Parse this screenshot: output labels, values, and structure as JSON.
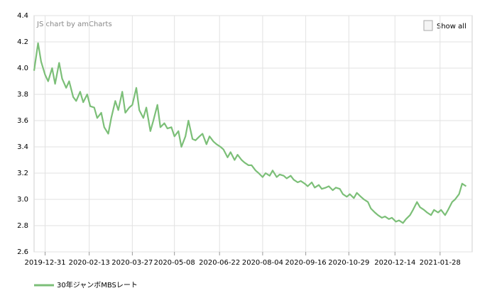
{
  "chart_data": {
    "type": "line",
    "credit": "JS chart by amCharts",
    "button": "Show all",
    "x": [
      "2019-12-20",
      "2019-12-24",
      "2019-12-27",
      "2019-12-31",
      "2020-01-03",
      "2020-01-07",
      "2020-01-10",
      "2020-01-14",
      "2020-01-17",
      "2020-01-21",
      "2020-01-24",
      "2020-01-28",
      "2020-01-31",
      "2020-02-04",
      "2020-02-07",
      "2020-02-11",
      "2020-02-14",
      "2020-02-18",
      "2020-02-21",
      "2020-02-25",
      "2020-02-28",
      "2020-03-03",
      "2020-03-06",
      "2020-03-10",
      "2020-03-13",
      "2020-03-17",
      "2020-03-20",
      "2020-03-24",
      "2020-03-27",
      "2020-03-31",
      "2020-04-03",
      "2020-04-07",
      "2020-04-10",
      "2020-04-14",
      "2020-04-17",
      "2020-04-21",
      "2020-04-24",
      "2020-04-28",
      "2020-05-01",
      "2020-05-05",
      "2020-05-08",
      "2020-05-12",
      "2020-05-15",
      "2020-05-19",
      "2020-05-22",
      "2020-05-26",
      "2020-05-29",
      "2020-06-02",
      "2020-06-05",
      "2020-06-09",
      "2020-06-12",
      "2020-06-16",
      "2020-06-19",
      "2020-06-23",
      "2020-06-26",
      "2020-06-30",
      "2020-07-03",
      "2020-07-07",
      "2020-07-10",
      "2020-07-14",
      "2020-07-17",
      "2020-07-21",
      "2020-07-24",
      "2020-07-28",
      "2020-07-31",
      "2020-08-04",
      "2020-08-07",
      "2020-08-11",
      "2020-08-14",
      "2020-08-18",
      "2020-08-21",
      "2020-08-25",
      "2020-08-28",
      "2020-09-01",
      "2020-09-04",
      "2020-09-08",
      "2020-09-11",
      "2020-09-15",
      "2020-09-18",
      "2020-09-22",
      "2020-09-25",
      "2020-09-29",
      "2020-10-02",
      "2020-10-06",
      "2020-10-09",
      "2020-10-13",
      "2020-10-16",
      "2020-10-20",
      "2020-10-23",
      "2020-10-27",
      "2020-10-30",
      "2020-11-03",
      "2020-11-06",
      "2020-11-10",
      "2020-11-13",
      "2020-11-17",
      "2020-11-20",
      "2020-11-24",
      "2020-11-27",
      "2020-12-01",
      "2020-12-04",
      "2020-12-08",
      "2020-12-11",
      "2020-12-15",
      "2020-12-18",
      "2020-12-22",
      "2020-12-25",
      "2020-12-29",
      "2021-01-01",
      "2021-01-05",
      "2021-01-08",
      "2021-01-12",
      "2021-01-15",
      "2021-01-19",
      "2021-01-22",
      "2021-01-26",
      "2021-01-29",
      "2021-02-02",
      "2021-02-05",
      "2021-02-09",
      "2021-02-12",
      "2021-02-16",
      "2021-02-19",
      "2021-02-23"
    ],
    "series": [
      {
        "name": "30年ジャンボMBSレート",
        "color": "#7cbf78",
        "values": [
          3.98,
          4.19,
          4.05,
          3.95,
          3.9,
          4.0,
          3.88,
          4.04,
          3.92,
          3.85,
          3.9,
          3.78,
          3.75,
          3.82,
          3.74,
          3.8,
          3.71,
          3.7,
          3.62,
          3.66,
          3.55,
          3.5,
          3.62,
          3.75,
          3.68,
          3.82,
          3.66,
          3.7,
          3.72,
          3.85,
          3.68,
          3.62,
          3.7,
          3.52,
          3.6,
          3.72,
          3.55,
          3.58,
          3.54,
          3.55,
          3.48,
          3.52,
          3.4,
          3.48,
          3.6,
          3.46,
          3.45,
          3.48,
          3.5,
          3.42,
          3.48,
          3.44,
          3.42,
          3.4,
          3.38,
          3.32,
          3.36,
          3.3,
          3.34,
          3.3,
          3.28,
          3.26,
          3.26,
          3.22,
          3.2,
          3.17,
          3.2,
          3.18,
          3.22,
          3.17,
          3.19,
          3.18,
          3.16,
          3.18,
          3.15,
          3.13,
          3.14,
          3.12,
          3.1,
          3.13,
          3.09,
          3.11,
          3.08,
          3.09,
          3.1,
          3.07,
          3.09,
          3.08,
          3.04,
          3.02,
          3.04,
          3.01,
          3.05,
          3.02,
          3.0,
          2.98,
          2.93,
          2.9,
          2.88,
          2.86,
          2.87,
          2.85,
          2.86,
          2.83,
          2.84,
          2.82,
          2.85,
          2.88,
          2.92,
          2.98,
          2.94,
          2.92,
          2.9,
          2.88,
          2.92,
          2.9,
          2.92,
          2.88,
          2.92,
          2.98,
          3.0,
          3.04,
          3.12,
          3.1
        ]
      }
    ],
    "xlim": [
      "2019-12-20",
      "2021-03-01"
    ],
    "xticks": [
      "2019-12-31",
      "2020-02-13",
      "2020-03-27",
      "2020-05-08",
      "2020-06-22",
      "2020-08-04",
      "2020-09-16",
      "2020-10-29",
      "2020-12-14",
      "2021-01-28"
    ],
    "ylim": [
      2.6,
      4.4
    ],
    "yticks": [
      2.6,
      2.8,
      {
        "value": 3,
        "label": "3.0"
      },
      3.2,
      3.4,
      3.6,
      3.8,
      {
        "value": 4,
        "label": "4.0"
      },
      4.2,
      4.4
    ],
    "grid": true
  }
}
